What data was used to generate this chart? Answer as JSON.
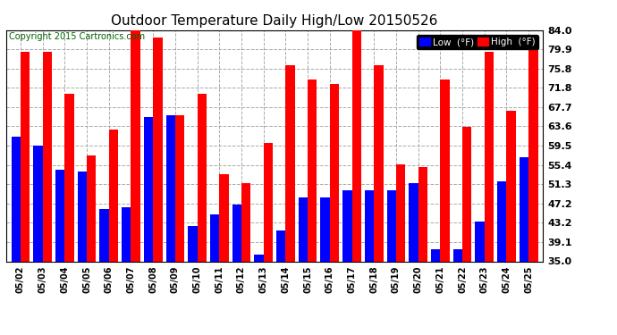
{
  "title": "Outdoor Temperature Daily High/Low 20150526",
  "copyright": "Copyright 2015 Cartronics.com",
  "legend_low": "Low  (°F)",
  "legend_high": "High  (°F)",
  "dates": [
    "05/02",
    "05/03",
    "05/04",
    "05/05",
    "05/06",
    "05/07",
    "05/08",
    "05/09",
    "05/10",
    "05/11",
    "05/12",
    "05/13",
    "05/14",
    "05/15",
    "05/16",
    "05/17",
    "05/18",
    "05/19",
    "05/20",
    "05/21",
    "05/22",
    "05/23",
    "05/24",
    "05/25"
  ],
  "highs": [
    79.5,
    79.5,
    70.5,
    57.5,
    63.0,
    85.0,
    82.5,
    66.0,
    70.5,
    53.5,
    51.5,
    60.0,
    76.5,
    73.5,
    72.5,
    84.0,
    76.5,
    55.5,
    55.0,
    73.5,
    63.5,
    79.5,
    67.0,
    80.0
  ],
  "lows": [
    61.5,
    59.5,
    54.5,
    54.0,
    46.0,
    46.5,
    65.5,
    66.0,
    42.5,
    45.0,
    47.0,
    36.5,
    41.5,
    48.5,
    48.5,
    50.0,
    50.0,
    50.0,
    51.5,
    37.5,
    37.5,
    43.5,
    52.0,
    57.0
  ],
  "ymin": 35.0,
  "ymax": 84.0,
  "yticks": [
    35.0,
    39.1,
    43.2,
    47.2,
    51.3,
    55.4,
    59.5,
    63.6,
    67.7,
    71.8,
    75.8,
    79.9,
    84.0
  ],
  "bar_color_low": "#0000ff",
  "bar_color_high": "#ff0000",
  "bg_color": "#ffffff",
  "legend_low_bg": "#0000ff",
  "legend_high_bg": "#ff0000",
  "grid_color": "#aaaaaa",
  "title_fontsize": 11,
  "copyright_fontsize": 7,
  "bar_width": 0.42,
  "figsize": [
    6.9,
    3.75
  ],
  "dpi": 100
}
